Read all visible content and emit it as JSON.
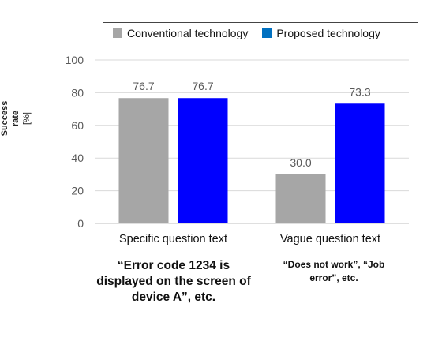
{
  "chart_data": {
    "type": "bar",
    "categories": [
      "Specific question text",
      "Vague question text"
    ],
    "series": [
      {
        "name": "Conventional technology",
        "values": [
          76.7,
          30.0
        ],
        "color": "#a6a6a6"
      },
      {
        "name": "Proposed technology",
        "values": [
          76.7,
          73.3
        ],
        "color": "#0000ff"
      }
    ],
    "ylabel": "Success rate",
    "yunit": "[%]",
    "ylim": [
      0,
      100
    ],
    "yticks": [
      0,
      20,
      40,
      60,
      80,
      100
    ],
    "grid": true,
    "legend_position": "top"
  },
  "annotations": {
    "specific": "“Error code 1234 is displayed on the screen of device A”, etc.",
    "vague": "“Does not work”, “Job error”, etc."
  }
}
